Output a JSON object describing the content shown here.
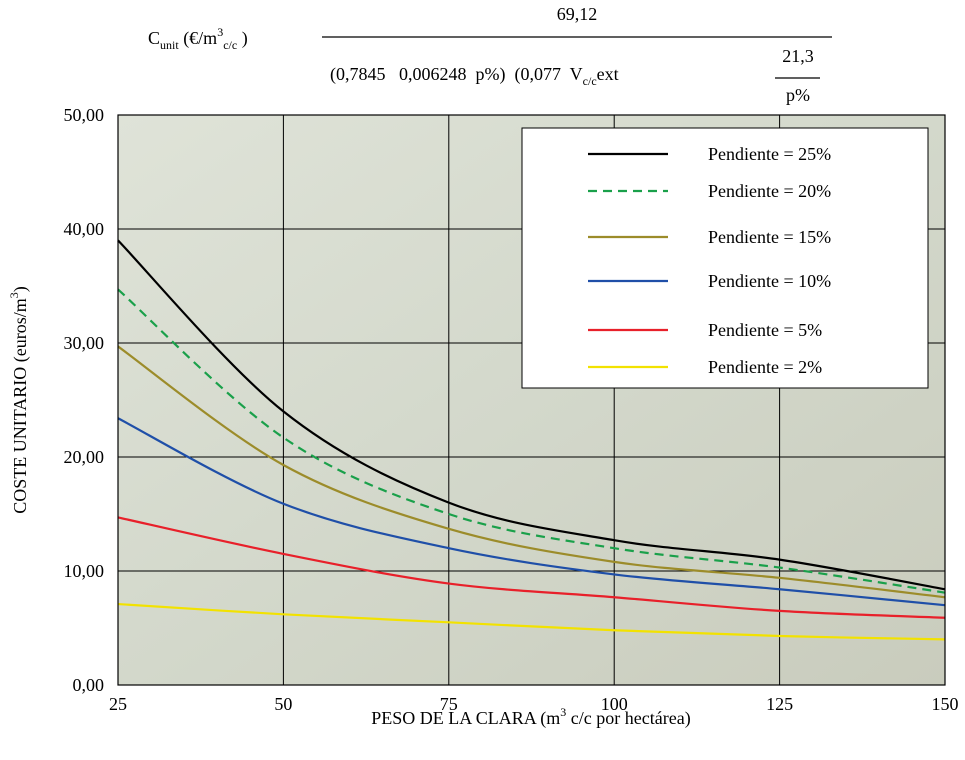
{
  "chart_data": {
    "type": "line",
    "formula": {
      "lhs": [
        "C",
        "unit",
        " (€/m",
        "3",
        "c/c",
        " )"
      ],
      "numerator": "69,12",
      "denominator": [
        "(0,7845   0,006248  p%)  (0,077  V",
        "c/c",
        "ext"
      ],
      "inner_numerator": "21,3",
      "inner_denominator": "p%"
    },
    "x_label": [
      "PESO DE LA CLARA (m",
      "3",
      " c/c por hectárea)"
    ],
    "y_label": [
      "COSTE UNITARIO (euros/m",
      "3",
      ")"
    ],
    "x": [
      25,
      50,
      75,
      100,
      125,
      150
    ],
    "xlim": [
      25,
      150
    ],
    "xticks": [
      25,
      50,
      75,
      100,
      125,
      150
    ],
    "ylim": [
      0,
      50
    ],
    "yticks": [
      {
        "value": 0,
        "label": "0,00"
      },
      {
        "value": 10,
        "label": "10,00"
      },
      {
        "value": 20,
        "label": "20,00"
      },
      {
        "value": 30,
        "label": "30,00"
      },
      {
        "value": 40,
        "label": "40,00"
      },
      {
        "value": 50,
        "label": "50,00"
      }
    ],
    "grid": true,
    "legend": "upper right",
    "series": [
      {
        "name": "Pendiente = 25%",
        "color": "#000000",
        "dash": false,
        "values": [
          39,
          24,
          16,
          12.7,
          11,
          8.4
        ]
      },
      {
        "name": "Pendiente = 20%",
        "color": "#1aa04a",
        "dash": true,
        "values": [
          34.7,
          21.7,
          15,
          12,
          10.3,
          8.1
        ]
      },
      {
        "name": "Pendiente = 15%",
        "color": "#9c8c2a",
        "dash": false,
        "values": [
          29.7,
          19.3,
          13.7,
          10.8,
          9.4,
          7.7
        ]
      },
      {
        "name": "Pendiente = 10%",
        "color": "#1f4fa8",
        "dash": false,
        "values": [
          23.4,
          15.9,
          12,
          9.7,
          8.4,
          7
        ]
      },
      {
        "name": "Pendiente = 5%",
        "color": "#e8202a",
        "dash": false,
        "values": [
          14.7,
          11.5,
          8.9,
          7.7,
          6.5,
          5.9
        ]
      },
      {
        "name": "Pendiente = 2%",
        "color": "#f2e200",
        "dash": false,
        "values": [
          7.1,
          6.2,
          5.5,
          4.8,
          4.3,
          4
        ]
      }
    ]
  }
}
